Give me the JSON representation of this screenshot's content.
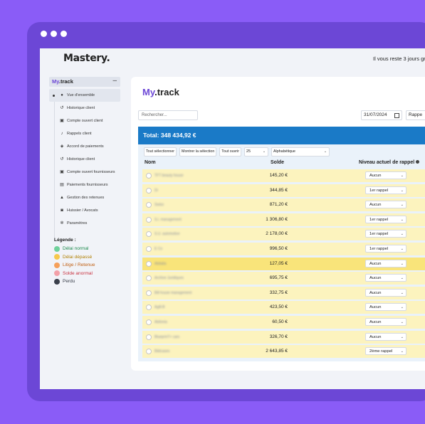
{
  "app": {
    "brand": "Mastery.",
    "trial_text": "Il vous reste 3 jours gra"
  },
  "sidebar": {
    "module": {
      "my": "My",
      "name": ".track",
      "toggle": "–"
    },
    "items": [
      {
        "label": "Vue d'ensemble",
        "icon": "●"
      },
      {
        "label": "Historique client",
        "icon": "↺"
      },
      {
        "label": "Compte ouvert client",
        "icon": "▣"
      },
      {
        "label": "Rappels client",
        "icon": "♪"
      },
      {
        "label": "Accord de paiements",
        "icon": "◈"
      },
      {
        "label": "Historique client",
        "icon": "↺"
      },
      {
        "label": "Compte ouvert fournisseurs",
        "icon": "▣"
      },
      {
        "label": "Paiements fournisseurs",
        "icon": "▤"
      },
      {
        "label": "Gestion des retenues",
        "icon": "▲"
      },
      {
        "label": "Huissier / Avocats",
        "icon": "◙"
      },
      {
        "label": "Paramètres",
        "icon": "✲"
      }
    ]
  },
  "legend": {
    "title": "Légende :",
    "items": [
      {
        "label": "Délai normal",
        "color": "#6fd19b",
        "text_color": "#1c8a4c"
      },
      {
        "label": "Délai dépassé",
        "color": "#f6c84b",
        "text_color": "#b07f00"
      },
      {
        "label": "Litige / Retenue",
        "color": "#f5a05a",
        "text_color": "#c15f12"
      },
      {
        "label": "Solde anormal",
        "color": "#f3a0a8",
        "text_color": "#c8323f"
      },
      {
        "label": "Perdu",
        "color": "#3a3f4b",
        "text_color": "#3a3f4b"
      }
    ]
  },
  "main": {
    "title_my": "My",
    "title_rest": ".track",
    "search_placeholder": "Rechercher...",
    "date_value": "31/07/2024",
    "rappel_filter": "Rappe",
    "total": "Total: 348 434,92 €",
    "toolbar": {
      "select_all": "Tout sélectionner",
      "show_selection": "Montrer la sélection",
      "open_all": "Tout ouvrir",
      "per_page": "25",
      "sort": "Alphabétique"
    },
    "columns": {
      "name": "Nom",
      "solde": "Solde",
      "niveau": "Niveau actuel de rappel"
    },
    "rows": [
      {
        "name": "TFT beauty house",
        "solde": "145,20 €",
        "rappel": "Aucun",
        "hl": false
      },
      {
        "name": "Di",
        "solde": "344,85 €",
        "rappel": "1er rappel",
        "hl": false
      },
      {
        "name": "Swiss",
        "solde": "871,20 €",
        "rappel": "Aucun",
        "hl": false
      },
      {
        "name": "S.i. management",
        "solde": "1 306,80 €",
        "rappel": "1er rappel",
        "hl": false
      },
      {
        "name": "S.U. automotive",
        "solde": "2 178,00 €",
        "rappel": "1er rappel",
        "hl": false
      },
      {
        "name": "E Co",
        "solde": "996,50 €",
        "rappel": "1er rappel",
        "hl": false
      },
      {
        "name": "Abitalia",
        "solde": "127,05 €",
        "rappel": "Aucun",
        "hl": true
      },
      {
        "name": "Archive Juridiques",
        "solde": "695,75 €",
        "rappel": "Aucun",
        "hl": false
      },
      {
        "name": "Bill house management",
        "solde": "332,75 €",
        "rappel": "Aucun",
        "hl": false
      },
      {
        "name": "Agill-B",
        "solde": "423,50 €",
        "rappel": "Aucun",
        "hl": false
      },
      {
        "name": "Abilonia",
        "solde": "60,50 €",
        "rappel": "Aucun",
        "hl": false
      },
      {
        "name": "BlueprinT+ cars",
        "solde": "326,70 €",
        "rappel": "Aucun",
        "hl": false
      },
      {
        "name": "Bildcases",
        "solde": "2 643,85 €",
        "rappel": "2ème rappel",
        "hl": false
      }
    ]
  }
}
